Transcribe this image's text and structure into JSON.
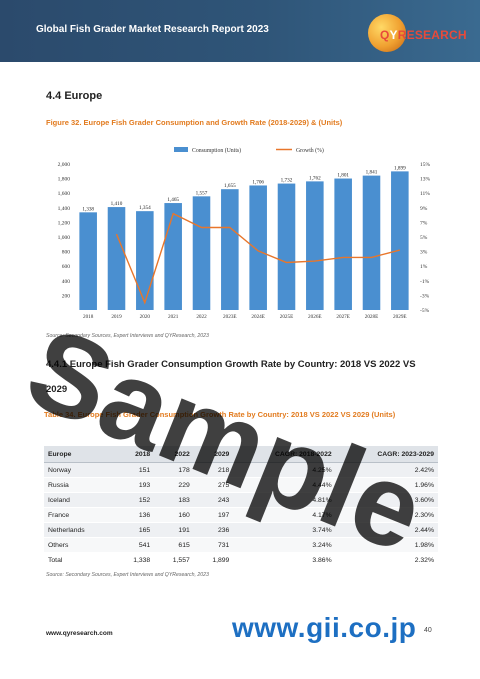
{
  "header": {
    "title": "Global Fish Grader Market Research Report 2023",
    "logo_q": "Q",
    "logo_y": "Y",
    "logo_rest": "RESEARCH"
  },
  "section": {
    "heading": "4.4  Europe",
    "figure_caption": "Figure 32.   Europe Fish Grader Consumption and Growth Rate (2018-2029) & (Units)"
  },
  "chart_data": {
    "type": "bar",
    "categories": [
      "2018",
      "2019",
      "2020",
      "2021",
      "2022",
      "2023E",
      "2024E",
      "2025E",
      "2026E",
      "2027E",
      "2028E",
      "2029E"
    ],
    "category_labels": [
      "2018",
      "2019",
      "2020",
      "2021",
      "2022",
      "2023E",
      "2024E",
      "2025E",
      "2026E",
      "2027E",
      "2028E",
      "2029E"
    ],
    "series": [
      {
        "name": "Consumption (Units)",
        "type": "bar",
        "color": "#4a8fd0",
        "values": [
          1338,
          1410,
          1354,
          1465,
          1557,
          1655,
          1706,
          1732,
          1762,
          1801,
          1841,
          1899
        ],
        "labels": [
          "1,338",
          "1,410",
          "1,354",
          "1,465",
          "1,557",
          "1,655",
          "1,706",
          "1,732",
          "1,762",
          "1,801",
          "1,841",
          "1,899"
        ]
      },
      {
        "name": "Growth (%)",
        "type": "line",
        "color": "#e8762b",
        "values": [
          null,
          5.4,
          -4.0,
          8.2,
          6.3,
          6.3,
          3.1,
          1.5,
          1.7,
          2.2,
          2.2,
          3.2
        ]
      }
    ],
    "left_axis": {
      "min": 0,
      "max": 2000,
      "ticks": [
        "200",
        "400",
        "600",
        "800",
        "1,000",
        "1,200",
        "1,400",
        "1,600",
        "1,800",
        "2,000"
      ]
    },
    "right_axis": {
      "min": -5,
      "max": 15,
      "ticks": [
        "-5%",
        "-3%",
        "-1%",
        "1%",
        "3%",
        "5%",
        "7%",
        "9%",
        "11%",
        "13%",
        "15%"
      ]
    },
    "legend_position": "top"
  },
  "chart_source": "Source: Secondary Sources, Expert Interviews and QYResearch, 2023",
  "subsection": {
    "heading_line1": "4.4.1   Europe Fish Grader Consumption Growth Rate by Country: 2018 VS 2022 VS",
    "heading_line2": "2029"
  },
  "table": {
    "caption": "Table 34.   Europe Fish Grader Consumption Growth Rate by Country: 2018 VS 2022 VS 2029 (Units)",
    "headers": [
      "Europe",
      "2018",
      "2022",
      "2029",
      "CAGR: 2018-2022",
      "CAGR: 2023-2029"
    ],
    "rows": [
      [
        "Norway",
        "151",
        "178",
        "218",
        "4.25%",
        "2.42%"
      ],
      [
        "Russia",
        "193",
        "229",
        "275",
        "4.44%",
        "1.96%"
      ],
      [
        "Iceland",
        "152",
        "183",
        "243",
        "4.81%",
        "3.60%"
      ],
      [
        "France",
        "136",
        "160",
        "197",
        "4.17%",
        "2.30%"
      ],
      [
        "Netherlands",
        "165",
        "191",
        "236",
        "3.74%",
        "2.44%"
      ],
      [
        "Others",
        "541",
        "615",
        "731",
        "3.24%",
        "1.98%"
      ]
    ],
    "total": [
      "Total",
      "1,338",
      "1,557",
      "1,899",
      "3.86%",
      "2.32%"
    ]
  },
  "table_source": "Source: Secondary Sources, Expert Interviews and QYResearch, 2023",
  "footer": {
    "url": "www.qyresearch.com",
    "page": "40",
    "gii": "www.gii.co.jp"
  },
  "watermark": "Sample"
}
